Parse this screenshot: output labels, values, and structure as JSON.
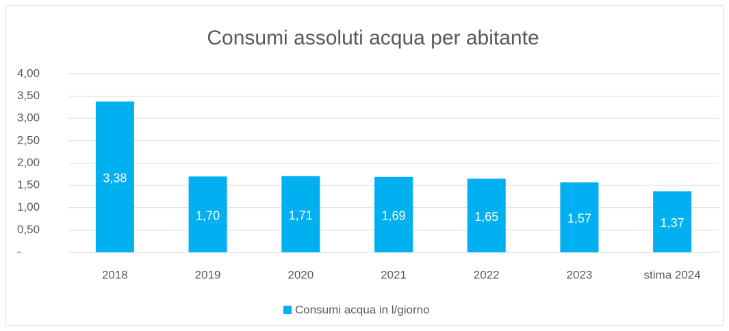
{
  "chart_data": {
    "type": "bar",
    "title": "Consumi assoluti acqua per abitante",
    "categories": [
      "2018",
      "2019",
      "2020",
      "2021",
      "2022",
      "2023",
      "stima 2024"
    ],
    "series": [
      {
        "name": "Consumi acqua in l/giorno",
        "color": "#00b0f0",
        "values": [
          3.38,
          1.7,
          1.71,
          1.69,
          1.65,
          1.57,
          1.37
        ],
        "value_labels": [
          "3,38",
          "1,70",
          "1,71",
          "1,69",
          "1,65",
          "1,57",
          "1,37"
        ]
      }
    ],
    "ylim": [
      0,
      4
    ],
    "yticks": [
      {
        "value": 0,
        "label": "-"
      },
      {
        "value": 0.5,
        "label": "0,50"
      },
      {
        "value": 1,
        "label": "1,00"
      },
      {
        "value": 1.5,
        "label": "1,50"
      },
      {
        "value": 2,
        "label": "2,00"
      },
      {
        "value": 2.5,
        "label": "2,50"
      },
      {
        "value": 3,
        "label": "3,00"
      },
      {
        "value": 3.5,
        "label": "3,50"
      },
      {
        "value": 4,
        "label": "4,00"
      }
    ],
    "grid": true,
    "legend": "bottom"
  }
}
